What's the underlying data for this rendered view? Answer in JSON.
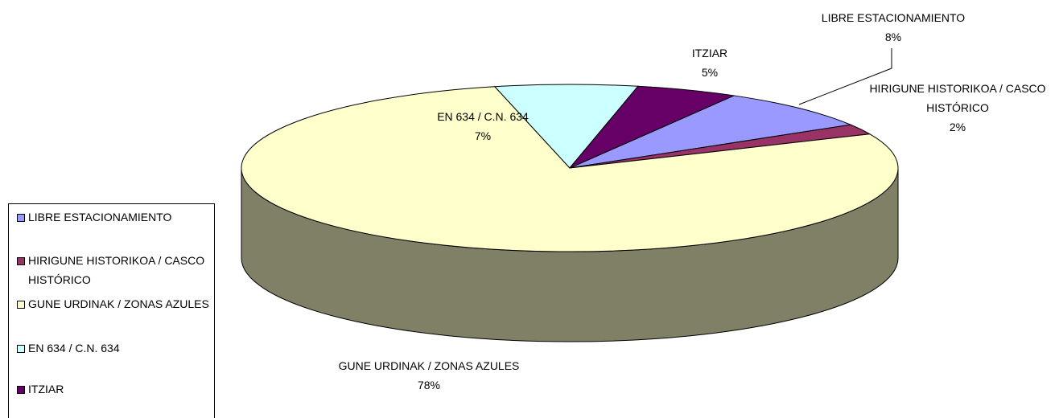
{
  "chart_data": {
    "type": "pie3d",
    "categories": [
      "LIBRE ESTACIONAMIENTO",
      "HIRIGUNE HISTORIKOA / CASCO HISTÓRICO",
      "GUNE URDINAK / ZONAS AZULES",
      "EN 634 / C.N. 634",
      "ITZIAR"
    ],
    "values": [
      8,
      2,
      78,
      7,
      5
    ],
    "value_labels": [
      "8%",
      "2%",
      "78%",
      "7%",
      "5%"
    ],
    "colors": [
      "#9999ff",
      "#993366",
      "#ffffcc",
      "#ccffff",
      "#660066"
    ],
    "start_angle": 30,
    "legend": "left"
  }
}
